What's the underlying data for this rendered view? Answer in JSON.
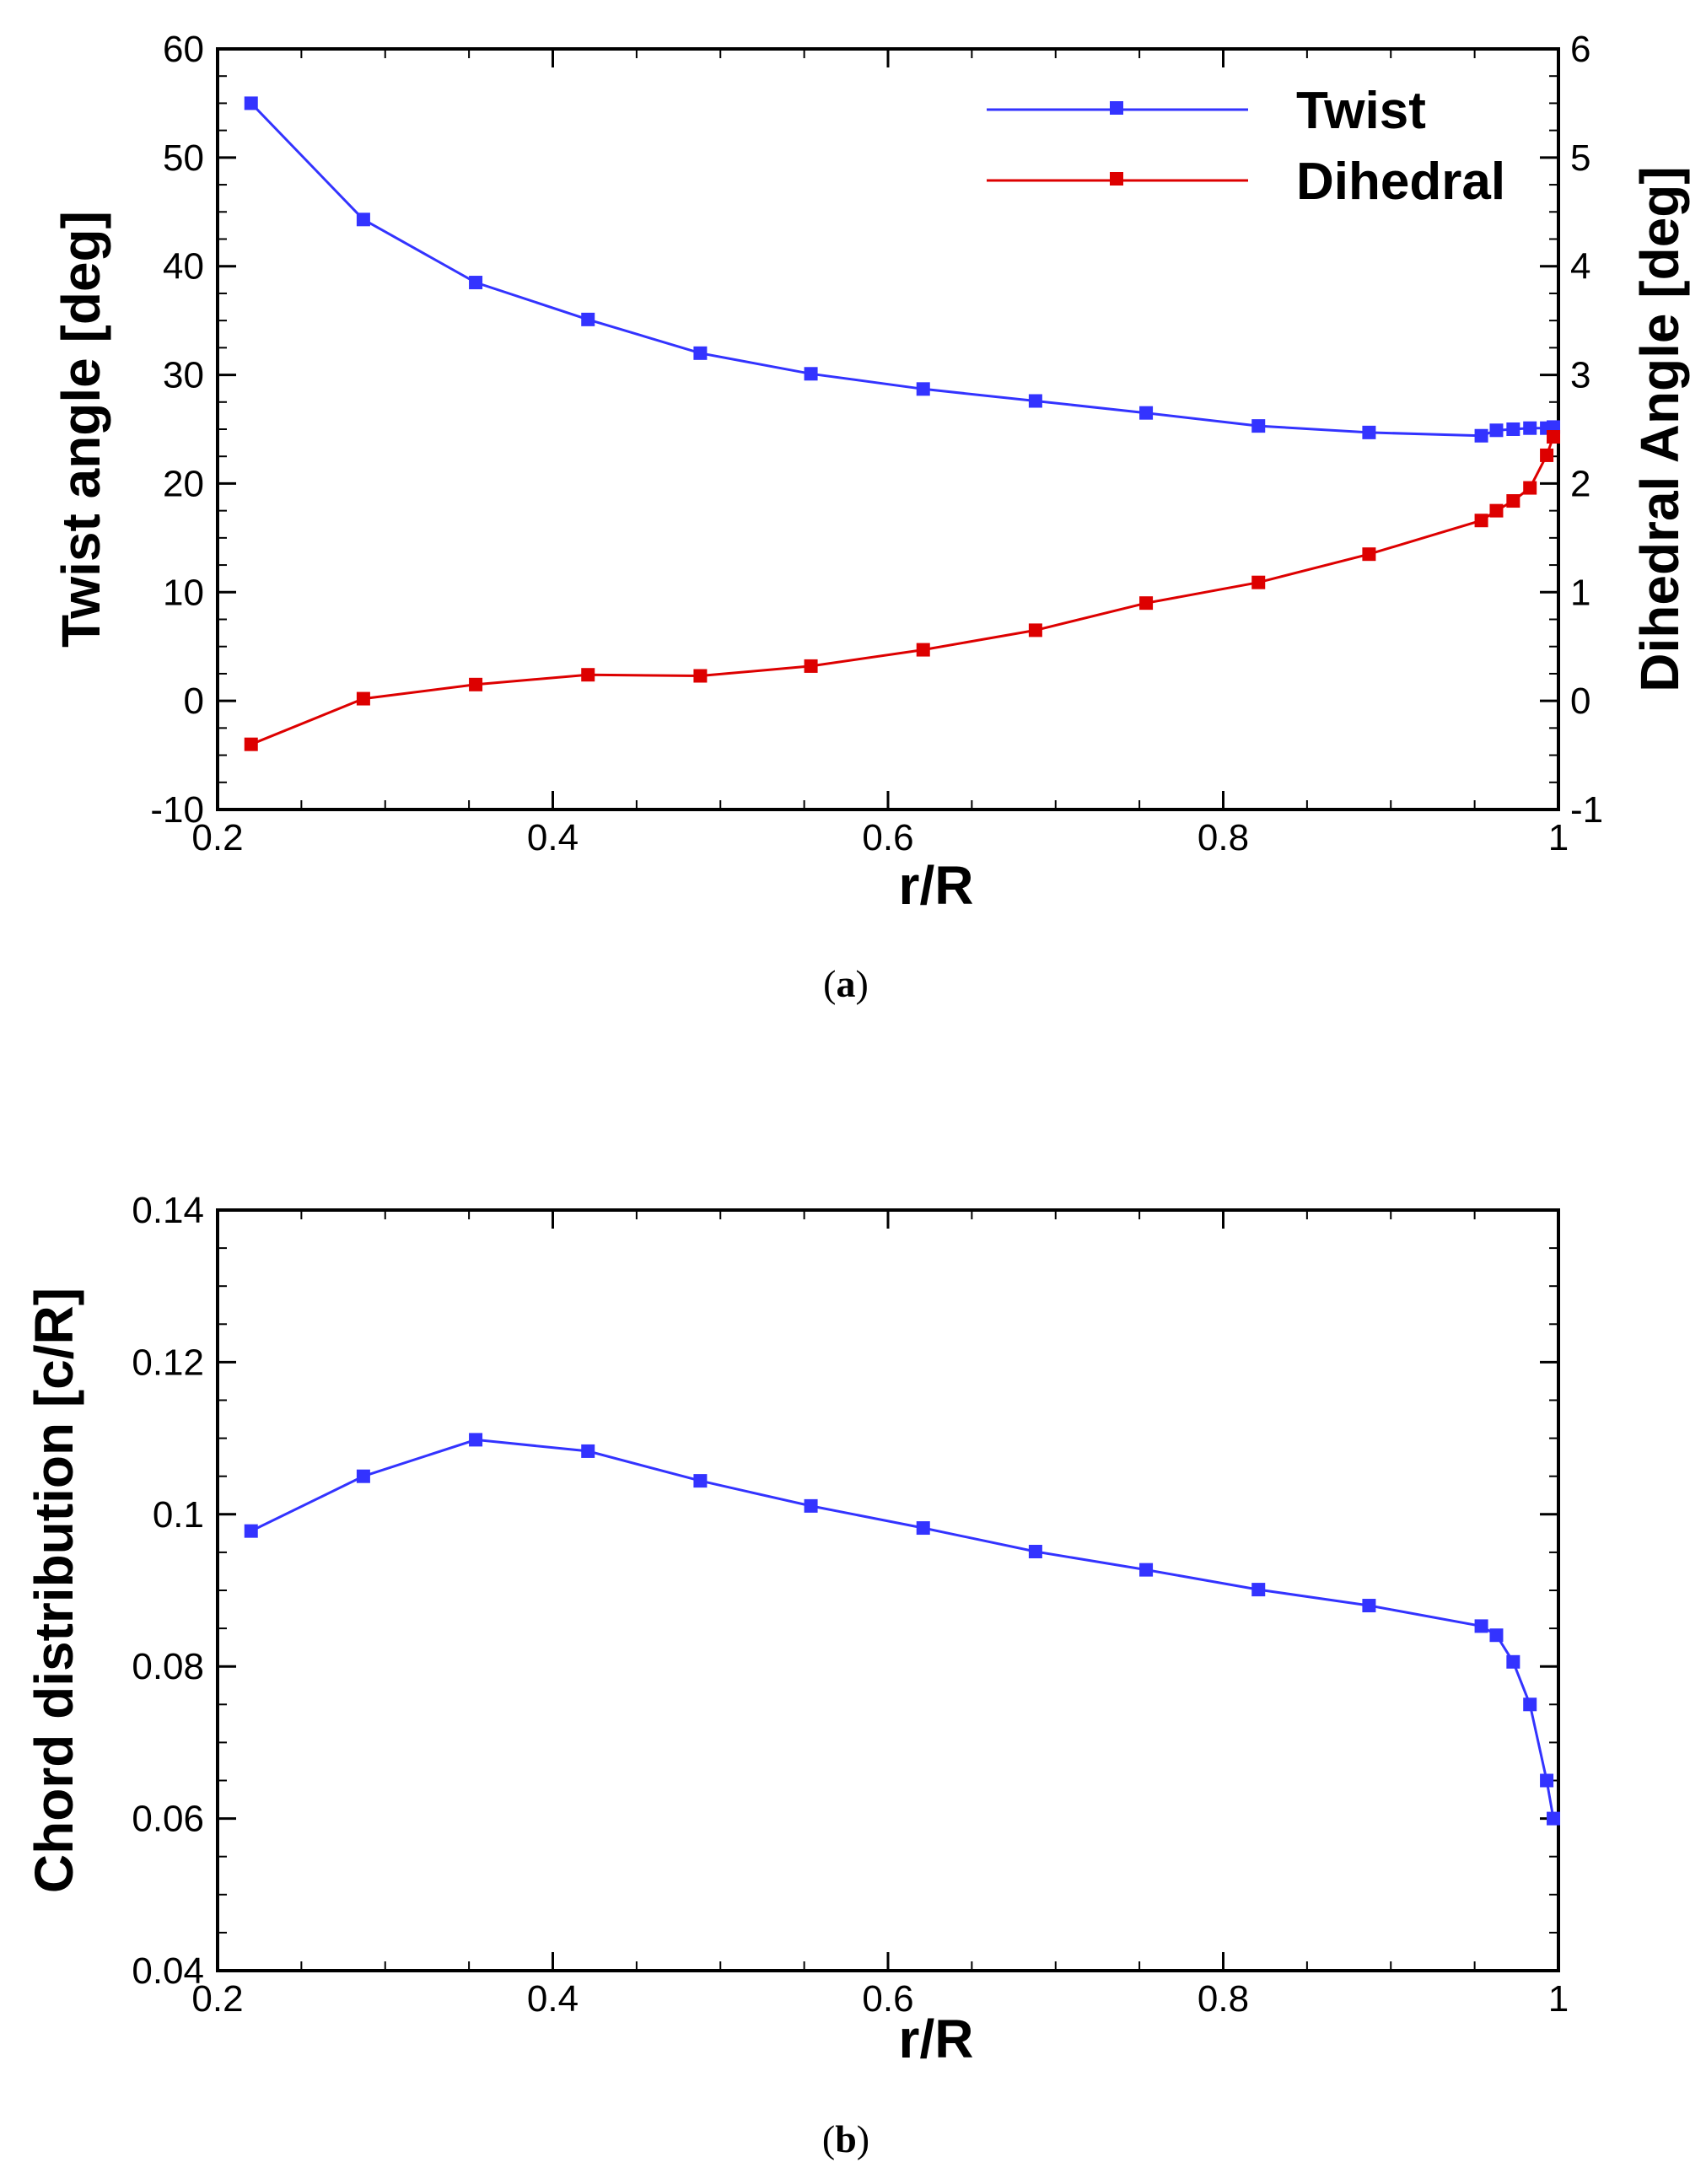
{
  "chart_data": [
    {
      "type": "line",
      "id": "a",
      "caption_open": "(",
      "caption_letter": "a",
      "caption_close": ")",
      "xlabel": "r/R",
      "ylabel": "Twist angle [deg]",
      "y2label": "Dihedral Angle [deg]",
      "xlim": [
        0.2,
        1.0
      ],
      "ylim": [
        -10,
        60
      ],
      "y2lim": [
        -1,
        6
      ],
      "xticks": [
        "0.2",
        "0.4",
        "0.6",
        "0.8",
        "1"
      ],
      "yticks": [
        "-10",
        "0",
        "10",
        "20",
        "30",
        "40",
        "50",
        "60"
      ],
      "y2ticks": [
        "-1",
        "0",
        "1",
        "2",
        "3",
        "4",
        "5",
        "6"
      ],
      "legend_position": "top-right",
      "series": [
        {
          "name": "Twist",
          "color": "#3333ff",
          "axis": "left",
          "x": [
            0.22,
            0.287,
            0.354,
            0.421,
            0.488,
            0.554,
            0.621,
            0.688,
            0.754,
            0.821,
            0.887,
            0.954,
            0.963,
            0.973,
            0.983,
            0.993,
            0.997
          ],
          "y": [
            55.0,
            44.3,
            38.5,
            35.1,
            32.0,
            30.1,
            28.7,
            27.6,
            26.5,
            25.3,
            24.7,
            24.4,
            24.9,
            25.0,
            25.1,
            25.1,
            25.2
          ]
        },
        {
          "name": "Dihedral",
          "color": "#dd0000",
          "axis": "right",
          "x": [
            0.22,
            0.287,
            0.354,
            0.421,
            0.488,
            0.554,
            0.621,
            0.688,
            0.754,
            0.821,
            0.887,
            0.954,
            0.963,
            0.973,
            0.983,
            0.993,
            0.997
          ],
          "y": [
            -0.4,
            0.02,
            0.15,
            0.24,
            0.23,
            0.32,
            0.47,
            0.65,
            0.9,
            1.09,
            1.35,
            1.66,
            1.75,
            1.84,
            1.96,
            2.26,
            2.43
          ]
        }
      ]
    },
    {
      "type": "line",
      "id": "b",
      "caption_open": "(",
      "caption_letter": "b",
      "caption_close": ")",
      "xlabel": "r/R",
      "ylabel": "Chord distribution [c/R]",
      "xlim": [
        0.2,
        1.0
      ],
      "ylim": [
        0.04,
        0.14
      ],
      "xticks": [
        "0.2",
        "0.4",
        "0.6",
        "0.8",
        "1"
      ],
      "yticks": [
        "0.04",
        "0.06",
        "0.08",
        "0.1",
        "0.12",
        "0.14"
      ],
      "series": [
        {
          "name": "Chord",
          "color": "#3333ff",
          "x": [
            0.22,
            0.287,
            0.354,
            0.421,
            0.488,
            0.554,
            0.621,
            0.688,
            0.754,
            0.821,
            0.887,
            0.954,
            0.963,
            0.973,
            0.983,
            0.993,
            0.997
          ],
          "y": [
            0.0978,
            0.105,
            0.1098,
            0.1083,
            0.1044,
            0.1011,
            0.0982,
            0.0951,
            0.0927,
            0.0901,
            0.088,
            0.0853,
            0.0841,
            0.0806,
            0.075,
            0.065,
            0.06
          ]
        }
      ]
    }
  ]
}
